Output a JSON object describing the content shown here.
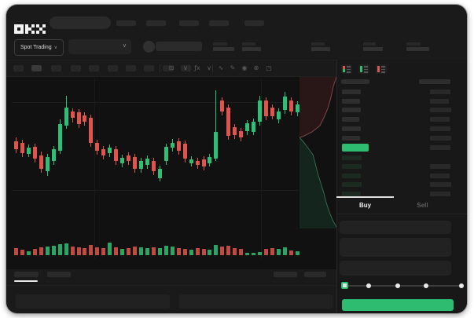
{
  "app": {
    "name": "OKX"
  },
  "colors": {
    "green": "#2ebd70",
    "red": "#e0544e",
    "window_bg": "#1a1a1a",
    "chart_bg": "#111111",
    "placeholder": "#2a2a2a",
    "placeholder_light": "#3a3a3a",
    "bid_bar": "#1b2b21",
    "ask_bar": "#2e2e2e",
    "amount_bar": "#292929",
    "depth_ask_fill": "#291718",
    "depth_ask_line": "#7d4644",
    "depth_bid_fill": "#13251c",
    "depth_bid_line": "#35684f"
  },
  "header": {
    "search": {
      "placeholder": ""
    },
    "nav_items": 5,
    "market_selector": {
      "label": "Spot Trading",
      "chevron": "∨"
    },
    "pair_dropdown": {
      "chevron": "∨"
    },
    "stats": [
      {
        "lw": 18,
        "vw": 27
      },
      {
        "lw": 17,
        "vw": 24
      },
      {
        "lw": 17,
        "vw": 24
      },
      {
        "lw": 16,
        "vw": 25
      },
      {
        "lw": 18,
        "vw": 29
      }
    ]
  },
  "toolbar": {
    "interval_buttons": 10,
    "active_interval": 1,
    "icons": [
      {
        "name": "chart-type-icon",
        "glyph": "⊟"
      },
      {
        "name": "chevron-down-icon",
        "glyph": "∨"
      },
      {
        "name": "indicators-icon",
        "glyph": "ƒx"
      },
      {
        "name": "chevron-down-icon",
        "glyph": "∨"
      },
      {
        "name": "wave-tool-icon",
        "glyph": "∿"
      },
      {
        "name": "draw-icon",
        "glyph": "✎"
      },
      {
        "name": "camera-icon",
        "glyph": "◉"
      },
      {
        "name": "settings-icon",
        "glyph": "⊗"
      },
      {
        "name": "expand-icon",
        "glyph": "◳"
      }
    ]
  },
  "chart_data": {
    "type": "candlestick",
    "note": "placeholder chart, no axis labels visible; values are pixel-space [dir, bodyTop, bodyBottom, wickTop, wickBottom]",
    "palette": {
      "up": "#2fbe77",
      "down": "#e0544e"
    },
    "candles": [
      [
        "d",
        70,
        80,
        65,
        85
      ],
      [
        "d",
        72,
        85,
        68,
        90
      ],
      [
        "u",
        78,
        86,
        74,
        90
      ],
      [
        "d",
        77,
        92,
        73,
        97
      ],
      [
        "d",
        88,
        105,
        83,
        110
      ],
      [
        "u",
        90,
        108,
        86,
        114
      ],
      [
        "u",
        80,
        95,
        76,
        100
      ],
      [
        "u",
        48,
        82,
        42,
        86
      ],
      [
        "u",
        27,
        50,
        12,
        54
      ],
      [
        "d",
        32,
        40,
        28,
        46
      ],
      [
        "d",
        33,
        48,
        29,
        53
      ],
      [
        "d",
        37,
        45,
        33,
        50
      ],
      [
        "d",
        40,
        72,
        36,
        77
      ],
      [
        "d",
        72,
        82,
        68,
        87
      ],
      [
        "d",
        80,
        88,
        76,
        93
      ],
      [
        "u",
        78,
        85,
        74,
        90
      ],
      [
        "d",
        80,
        95,
        76,
        100
      ],
      [
        "u",
        91,
        98,
        87,
        103
      ],
      [
        "d",
        88,
        95,
        84,
        100
      ],
      [
        "d",
        90,
        105,
        86,
        110
      ],
      [
        "u",
        95,
        105,
        91,
        110
      ],
      [
        "u",
        92,
        100,
        88,
        105
      ],
      [
        "d",
        95,
        108,
        91,
        113
      ],
      [
        "u",
        105,
        117,
        101,
        121
      ],
      [
        "u",
        77,
        95,
        73,
        100
      ],
      [
        "u",
        72,
        78,
        67,
        83
      ],
      [
        "d",
        70,
        82,
        66,
        87
      ],
      [
        "d",
        73,
        92,
        69,
        97
      ],
      [
        "u",
        93,
        98,
        89,
        102
      ],
      [
        "d",
        95,
        100,
        91,
        105
      ],
      [
        "d",
        93,
        102,
        89,
        107
      ],
      [
        "u",
        90,
        98,
        86,
        102
      ],
      [
        "u",
        58,
        92,
        5,
        95
      ],
      [
        "d",
        18,
        32,
        14,
        37
      ],
      [
        "d",
        27,
        63,
        23,
        68
      ],
      [
        "d",
        52,
        62,
        48,
        67
      ],
      [
        "d",
        57,
        65,
        53,
        70
      ],
      [
        "u",
        47,
        57,
        43,
        62
      ],
      [
        "u",
        45,
        58,
        41,
        62
      ],
      [
        "u",
        18,
        45,
        12,
        50
      ],
      [
        "d",
        18,
        38,
        14,
        43
      ],
      [
        "d",
        27,
        38,
        23,
        42
      ],
      [
        "u",
        32,
        42,
        28,
        47
      ],
      [
        "u",
        13,
        30,
        7,
        35
      ],
      [
        "d",
        18,
        32,
        14,
        37
      ],
      [
        "u",
        23,
        33,
        19,
        38
      ]
    ],
    "volumes": [
      9,
      7,
      5,
      8,
      10,
      11,
      12,
      14,
      15,
      11,
      10,
      9,
      13,
      10,
      9,
      16,
      10,
      8,
      9,
      11,
      10,
      9,
      10,
      9,
      12,
      11,
      9,
      8,
      7,
      9,
      8,
      7,
      13,
      11,
      12,
      9,
      8,
      3,
      3,
      4,
      8,
      9,
      8,
      10,
      6,
      5
    ],
    "gridlines": {
      "h": [
        32,
        144
      ],
      "v": [
        112,
        324
      ]
    },
    "depth": {
      "ask_line": [
        [
          47,
          0
        ],
        [
          43,
          12
        ],
        [
          40,
          26
        ],
        [
          36,
          40
        ],
        [
          31,
          52
        ],
        [
          26,
          62
        ],
        [
          16,
          70
        ],
        [
          4,
          76
        ],
        [
          0,
          77
        ]
      ],
      "bid_line": [
        [
          0,
          77
        ],
        [
          6,
          84
        ],
        [
          12,
          92
        ],
        [
          17,
          99
        ],
        [
          20,
          110
        ],
        [
          23,
          122
        ],
        [
          27,
          135
        ],
        [
          31,
          148
        ],
        [
          34,
          160
        ],
        [
          38,
          172
        ],
        [
          42,
          182
        ],
        [
          47,
          191
        ]
      ]
    }
  },
  "orderbook": {
    "view_icons": [
      {
        "name": "book-all-icon",
        "top": "#e0544e",
        "bottom": "#2ebd70"
      },
      {
        "name": "book-bids-icon",
        "top": "#2ebd70",
        "bottom": "#2ebd70"
      },
      {
        "name": "book-asks-icon",
        "top": "#e0544e",
        "bottom": "#e0544e"
      }
    ],
    "asks": [
      {
        "pw": 24,
        "aw": 26
      },
      {
        "pw": 23,
        "aw": 24
      },
      {
        "pw": 24,
        "aw": 27
      },
      {
        "pw": 22,
        "aw": 25
      },
      {
        "pw": 24,
        "aw": 26
      },
      {
        "pw": 23,
        "aw": 27
      }
    ],
    "last_price": {
      "highlight": "#2ebd70",
      "amount_w": 26
    },
    "bids": [
      {
        "pw": 25,
        "aw": 0
      },
      {
        "pw": 25,
        "aw": 26
      },
      {
        "pw": 24,
        "aw": 25
      },
      {
        "pw": 25,
        "aw": 27
      },
      {
        "pw": 24,
        "aw": 26
      }
    ]
  },
  "trade": {
    "tabs": [
      {
        "label": "Buy",
        "active": true
      },
      {
        "label": "Sell",
        "active": false
      }
    ],
    "fields": 3,
    "slider": {
      "stops": 5,
      "value_index": 0
    },
    "submit": {
      "color": "#2ebd70",
      "label": ""
    }
  }
}
